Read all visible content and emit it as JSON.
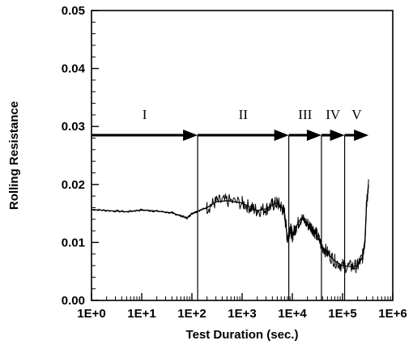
{
  "chart_data": {
    "type": "line",
    "xlabel": "Test Duration (sec.)",
    "ylabel": "Rolling Resistance",
    "x_scale": "log",
    "xlim": [
      1,
      1000000
    ],
    "ylim": [
      0,
      0.05
    ],
    "grid": false,
    "x_ticks": [
      {
        "value": 1,
        "label": "1E+0"
      },
      {
        "value": 10,
        "label": "1E+1"
      },
      {
        "value": 100,
        "label": "1E+2"
      },
      {
        "value": 1000,
        "label": "1E+3"
      },
      {
        "value": 10000,
        "label": "1E+4"
      },
      {
        "value": 100000,
        "label": "1E+5"
      },
      {
        "value": 1000000,
        "label": "1E+6"
      }
    ],
    "y_ticks": [
      {
        "value": 0,
        "label": "0.00"
      },
      {
        "value": 0.01,
        "label": "0.01"
      },
      {
        "value": 0.02,
        "label": "0.02"
      },
      {
        "value": 0.03,
        "label": "0.03"
      },
      {
        "value": 0.04,
        "label": "0.04"
      },
      {
        "value": 0.05,
        "label": "0.05"
      }
    ],
    "regions": [
      {
        "label": "I",
        "x_start": 1,
        "x_end": 130
      },
      {
        "label": "II",
        "x_start": 130,
        "x_end": 8500
      },
      {
        "label": "III",
        "x_start": 8500,
        "x_end": 38000
      },
      {
        "label": "IV",
        "x_start": 38000,
        "x_end": 110000
      },
      {
        "label": "V",
        "x_start": 110000,
        "x_end": 330000
      }
    ],
    "boundaries": [
      130,
      8500,
      38000,
      110000
    ],
    "arrow_y": 0.0285,
    "series": [
      {
        "x": [
          1,
          2,
          5,
          10,
          20,
          40,
          60,
          80,
          100,
          130,
          200,
          300,
          500,
          1000,
          1500,
          2000,
          3000,
          4000,
          5000,
          6000,
          7000,
          8000,
          9000,
          10000,
          12000,
          15000,
          20000,
          25000,
          30000,
          38000,
          50000,
          70000,
          100000,
          150000,
          200000,
          250000,
          280000,
          300000,
          330000
        ],
        "y": [
          0.0157,
          0.0155,
          0.0153,
          0.0156,
          0.0154,
          0.0151,
          0.0146,
          0.0142,
          0.015,
          0.0154,
          0.016,
          0.017,
          0.0172,
          0.0168,
          0.016,
          0.0155,
          0.0158,
          0.0165,
          0.0168,
          0.0162,
          0.015,
          0.0105,
          0.0125,
          0.0112,
          0.0128,
          0.0142,
          0.0132,
          0.0125,
          0.0115,
          0.0095,
          0.0082,
          0.0068,
          0.006,
          0.0058,
          0.006,
          0.0075,
          0.0105,
          0.0165,
          0.02
        ]
      }
    ]
  }
}
